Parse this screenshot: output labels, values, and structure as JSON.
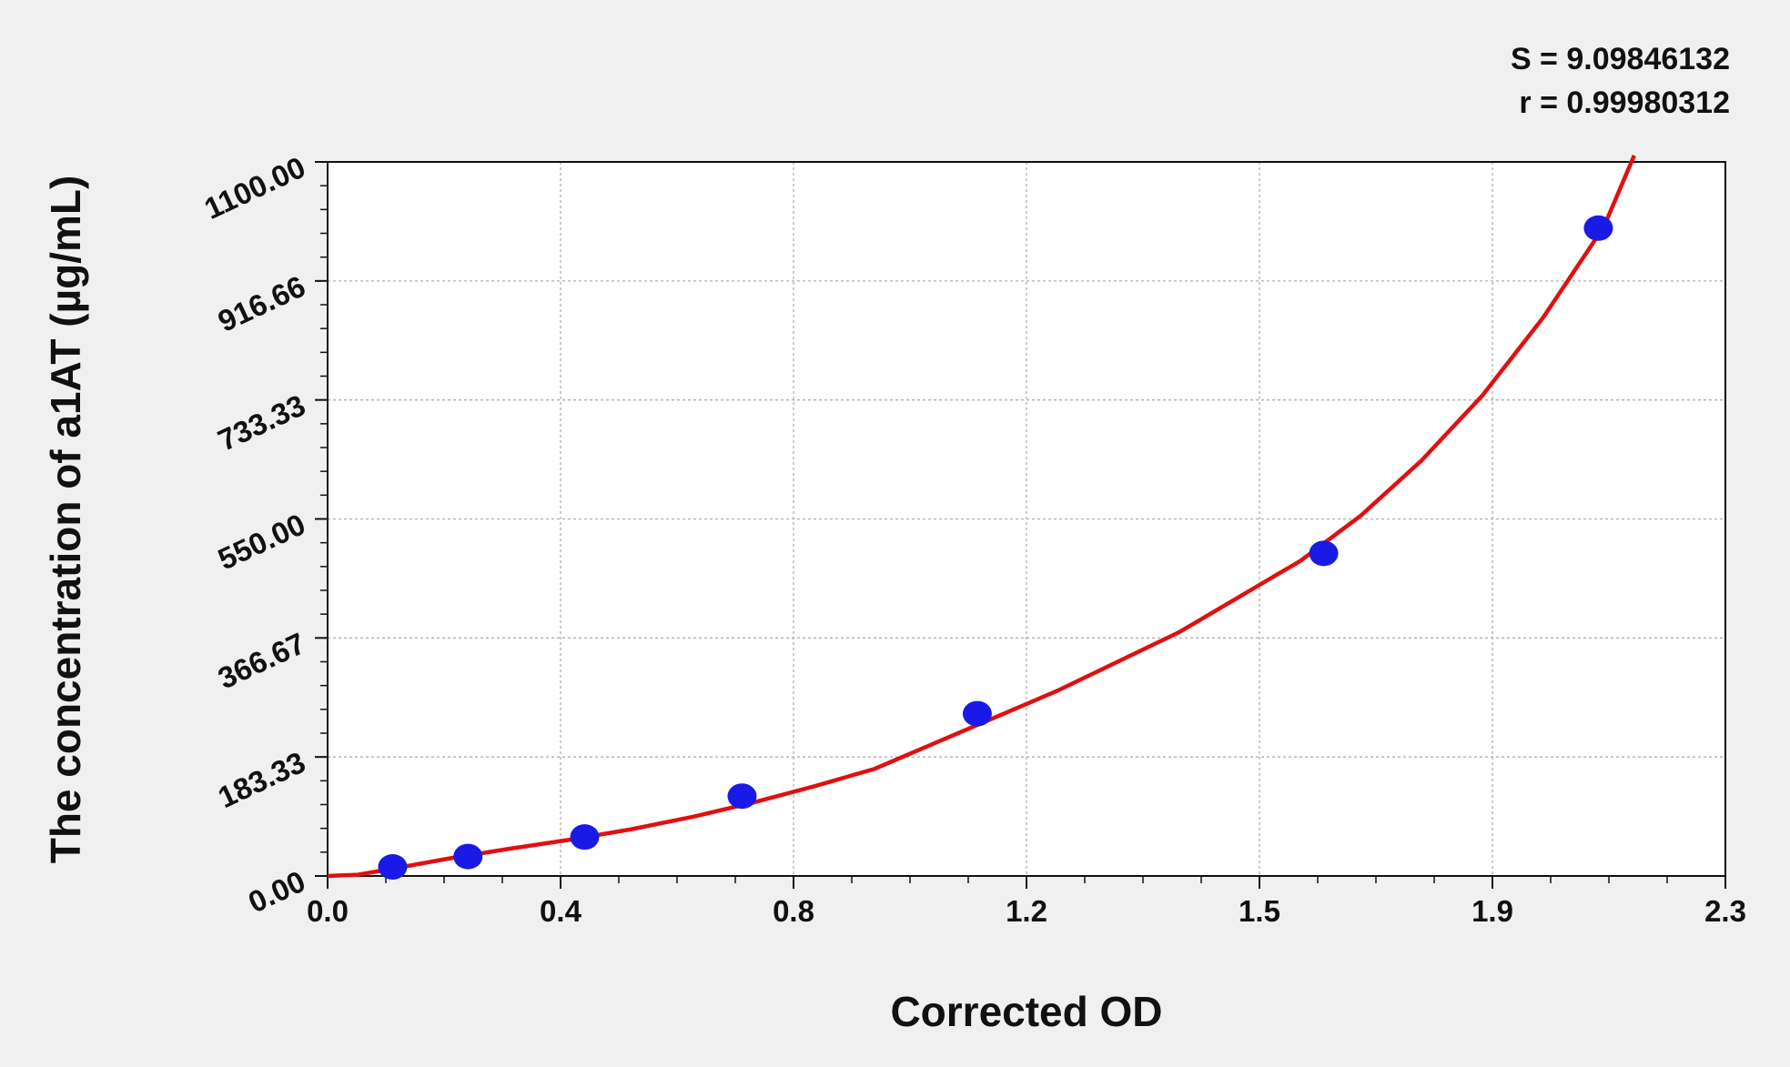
{
  "chart_data": {
    "type": "scatter",
    "x_label": "Corrected OD",
    "y_label": "The concentration of a1AT (µg/mL)",
    "annotations": [
      "S = 9.09846132",
      "r = 0.99980312"
    ],
    "x": [
      0.107,
      0.231,
      0.423,
      0.682,
      1.069,
      1.639,
      2.091
    ],
    "values": [
      14,
      30,
      60,
      123,
      250,
      497,
      998
    ],
    "color": "#1a1ae6",
    "fit": {
      "type": "line",
      "color": "#e01010",
      "x": [
        0,
        0.05,
        0.1,
        0.2,
        0.3,
        0.4,
        0.5,
        0.6,
        0.7,
        0.8,
        0.9,
        1.0,
        1.1,
        1.2,
        1.3,
        1.4,
        1.5,
        1.6,
        1.7,
        1.8,
        1.9,
        2.0,
        2.1,
        2.15
      ],
      "values": [
        0,
        2,
        10,
        27,
        42,
        56,
        72,
        91,
        113,
        138,
        165,
        205,
        245,
        285,
        330,
        375,
        430,
        485,
        555,
        640,
        740,
        860,
        1000,
        1110
      ]
    },
    "xlim": [
      0,
      2.3
    ],
    "xticks": [
      {
        "value": 0,
        "label": "0.0"
      },
      {
        "value": 0.38333,
        "label": "0.4"
      },
      {
        "value": 0.76667,
        "label": "0.8"
      },
      {
        "value": 1.15,
        "label": "1.2"
      },
      {
        "value": 1.53333,
        "label": "1.5"
      },
      {
        "value": 1.91667,
        "label": "1.9"
      },
      2.3
    ],
    "ylim": [
      0,
      1100
    ],
    "yticks": [
      {
        "value": 0,
        "label": "0.00"
      },
      183.33,
      366.67,
      {
        "value": 550,
        "label": "550.00"
      },
      733.33,
      916.66,
      {
        "value": 1100,
        "label": "1100.00"
      }
    ],
    "grid": true
  }
}
